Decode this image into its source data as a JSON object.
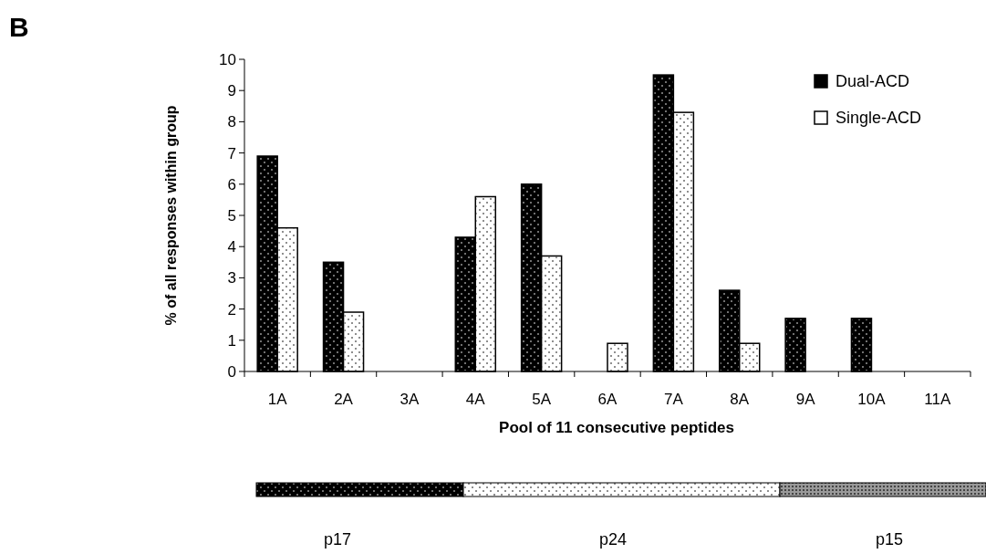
{
  "chart_data": {
    "type": "bar",
    "xlabel": "Pool of 11 consecutive peptides",
    "ylabel": "% of all responses within group",
    "categories": [
      "1A",
      "2A",
      "3A",
      "4A",
      "5A",
      "6A",
      "7A",
      "8A",
      "9A",
      "10A",
      "11A"
    ],
    "series": [
      {
        "name": "Dual-ACD",
        "color": "#000000",
        "values": [
          6.9,
          3.5,
          0,
          4.3,
          6.0,
          0,
          9.5,
          2.6,
          1.7,
          1.7,
          0
        ]
      },
      {
        "name": "Single-ACD",
        "color": "#ffffff",
        "values": [
          4.6,
          1.9,
          0,
          5.6,
          3.7,
          0.9,
          8.3,
          0.9,
          0,
          0,
          0
        ]
      }
    ],
    "ylim": [
      0,
      10
    ],
    "yticks": [
      0,
      1,
      2,
      3,
      4,
      5,
      6,
      7,
      8,
      9,
      10
    ],
    "grid": false,
    "legend": "top right",
    "annotations": [
      "B",
      "p17",
      "p24",
      "p15"
    ]
  }
}
